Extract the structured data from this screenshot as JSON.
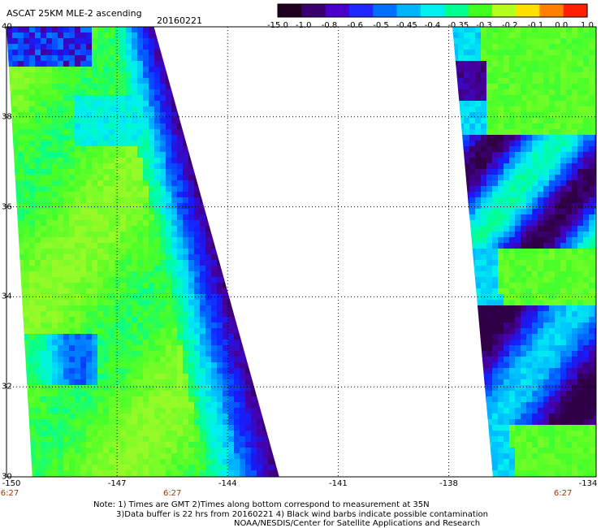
{
  "title": "ASCAT 25KM MLE-2 ascending",
  "date": "20160221",
  "colorbar": {
    "labels": [
      "-15.0",
      "-1.0",
      "-0.8",
      "-0.6",
      "-0.5",
      "-0.45",
      "-0.4",
      "-0.35",
      "-0.3",
      "-0.2",
      "-0.1",
      "0.0",
      "1.0"
    ],
    "colors": [
      "#200020",
      "#3a0070",
      "#4a00c8",
      "#1e28ff",
      "#0070ff",
      "#00b4ff",
      "#00f0f0",
      "#00ff90",
      "#40ff20",
      "#b4ff20",
      "#ffe000",
      "#ff8000",
      "#ff2000"
    ]
  },
  "map": {
    "lat_range": [
      30,
      40
    ],
    "lon_range": [
      -150,
      -134
    ],
    "lat_labels": [
      "40",
      "38",
      "36",
      "34",
      "32",
      "30"
    ],
    "lon_labels": [
      "-150",
      "-147",
      "-144",
      "-141",
      "-138",
      "-134"
    ],
    "time_labels": [
      "6:27",
      "6:27",
      "6:27"
    ],
    "swaths": [
      {
        "name": "west-swath",
        "lon_west_at_40": -150,
        "lon_east_at_40": -146.0,
        "lon_west_at_30": -149.3,
        "lon_east_at_30": -142.6
      },
      {
        "name": "east-swath",
        "lon_west_at_40": -137.9,
        "lon_east_at_40": -134,
        "lon_west_at_30": -136.8,
        "lon_east_at_30": -134
      }
    ]
  },
  "notes": {
    "line1": "Note: 1) Times are GMT 2)Times along bottom correspond to measurement at 35N",
    "line2": "3)Data buffer is 22 hrs from 20160221 4) Black wind barbs indicate possible contamination",
    "line3": "NOAA/NESDIS/Center for Satellite Applications and Research"
  }
}
